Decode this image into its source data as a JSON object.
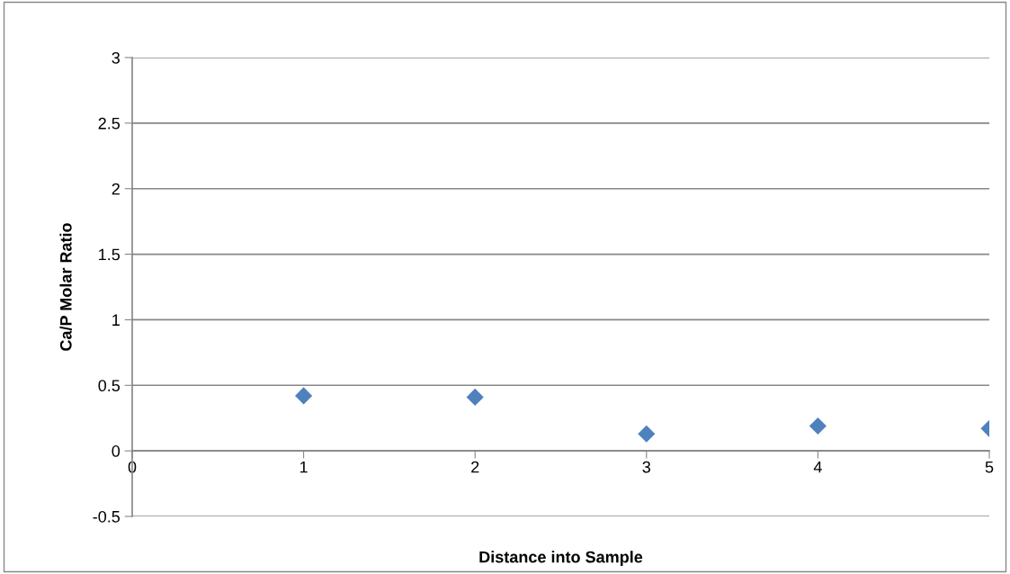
{
  "chart_data": {
    "type": "scatter",
    "xlabel": "Distance into Sample",
    "ylabel": "Ca/P Molar Ratio",
    "x": [
      1,
      2,
      3,
      4,
      5
    ],
    "series": [
      {
        "color": "#4f81bd",
        "values": [
          0.42,
          0.41,
          0.13,
          0.19,
          0.17
        ]
      }
    ],
    "marker": "diamond",
    "xlim": [
      0,
      5
    ],
    "xticks": [
      0,
      1,
      2,
      3,
      4,
      5
    ],
    "ylim": [
      -0.5,
      3
    ],
    "yticks": [
      -0.5,
      0,
      0.5,
      1,
      1.5,
      2,
      2.5,
      3
    ],
    "grid": "y",
    "legend": false
  }
}
